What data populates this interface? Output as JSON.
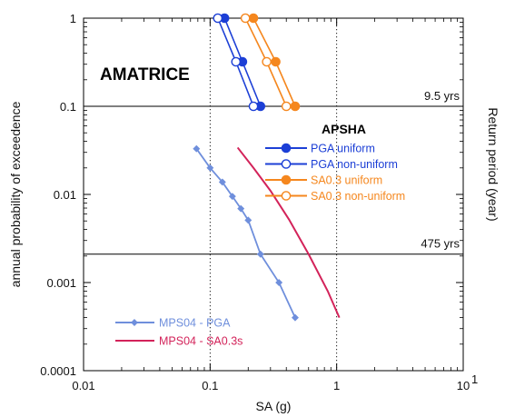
{
  "chart_data": {
    "type": "line",
    "title": "AMATRICE",
    "xlabel": "SA (g)",
    "ylabel": "annual probability of exceedence",
    "y2label": "Return period (year)",
    "xscale": "log",
    "yscale": "log",
    "xlim": [
      0.01,
      10
    ],
    "ylim": [
      0.0001,
      1
    ],
    "x_ticks": [
      {
        "value": 0.01,
        "label": "0.01"
      },
      {
        "value": 0.1,
        "label": "0.1"
      },
      {
        "value": 1,
        "label": "1"
      },
      {
        "value": 10,
        "label": "10"
      }
    ],
    "x_tick_superscript": "1",
    "y_ticks": [
      {
        "value": 1,
        "label": "1"
      },
      {
        "value": 0.1,
        "label": "0.1"
      },
      {
        "value": 0.01,
        "label": "0.01"
      },
      {
        "value": 0.001,
        "label": "0.001"
      },
      {
        "value": 0.0001,
        "label": "0.0001"
      }
    ],
    "grid": false,
    "reference_lines": [
      {
        "orientation": "horizontal",
        "value": 0.1,
        "label": "9.5 yrs",
        "style": "solid"
      },
      {
        "orientation": "horizontal",
        "value": 0.0021,
        "label": "475 yrs",
        "style": "solid"
      },
      {
        "orientation": "vertical",
        "value": 0.1,
        "style": "dotted"
      },
      {
        "orientation": "vertical",
        "value": 1,
        "style": "dotted"
      }
    ],
    "legends": [
      {
        "title": "APSHA",
        "position": "right-middle",
        "entries": [
          "PGA uniform",
          "PGA non-uniform",
          "SA0.3 uniform",
          "SA0.3 non-uniform"
        ]
      },
      {
        "title": "",
        "position": "bottom-left",
        "entries": [
          "MPS04 - PGA",
          "MPS04 - SA0.3s"
        ]
      }
    ],
    "series": [
      {
        "name": "PGA uniform",
        "color": "#1c3fd6",
        "marker": "filled-circle",
        "x": [
          0.13,
          0.18,
          0.25
        ],
        "y": [
          1,
          0.32,
          0.1
        ]
      },
      {
        "name": "PGA non-uniform",
        "color": "#1c3fd6",
        "marker": "open-circle",
        "x": [
          0.115,
          0.16,
          0.22
        ],
        "y": [
          1,
          0.32,
          0.1
        ]
      },
      {
        "name": "SA0.3 uniform",
        "color": "#f5871e",
        "marker": "filled-circle",
        "x": [
          0.22,
          0.33,
          0.47
        ],
        "y": [
          1,
          0.32,
          0.1
        ]
      },
      {
        "name": "SA0.3 non-uniform",
        "color": "#f5871e",
        "marker": "open-circle",
        "x": [
          0.19,
          0.28,
          0.4
        ],
        "y": [
          1,
          0.32,
          0.1
        ]
      },
      {
        "name": "MPS04 - PGA",
        "color": "#6f8fdc",
        "marker": "small-diamond",
        "x": [
          0.078,
          0.1,
          0.125,
          0.15,
          0.175,
          0.2,
          0.25,
          0.35,
          0.47
        ],
        "y": [
          0.033,
          0.02,
          0.0138,
          0.0095,
          0.0069,
          0.0051,
          0.0021,
          0.001,
          0.0004
        ]
      },
      {
        "name": "MPS04 - SA0.3s",
        "color": "#d3235a",
        "marker": "none",
        "x": [
          0.165,
          0.22,
          0.3,
          0.42,
          0.6,
          0.85,
          1.05
        ],
        "y": [
          0.034,
          0.02,
          0.011,
          0.0052,
          0.0021,
          0.0008,
          0.0004
        ]
      }
    ]
  }
}
